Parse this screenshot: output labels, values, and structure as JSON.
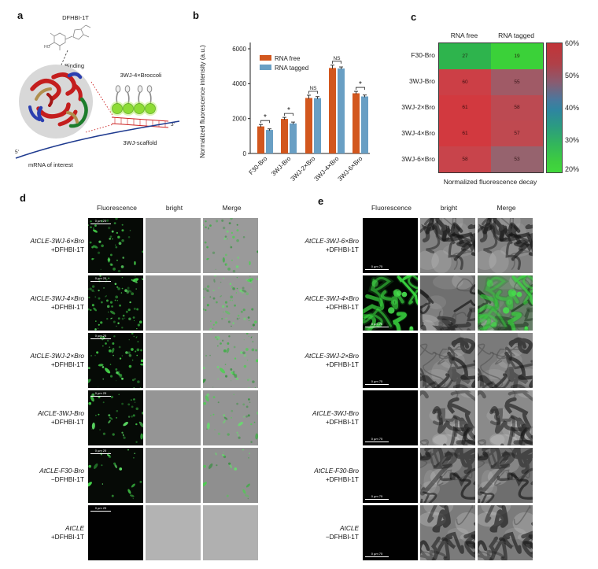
{
  "panels": {
    "a": {
      "label": "a",
      "dye": "DFHBI-1T",
      "ho_label": "HO",
      "binding": "Binding",
      "broccoli": "3WJ-4×Broccoli",
      "scaffold": "3WJ-scaffold",
      "mrna": "mRNA of interest",
      "five_prime": "5'",
      "three_prime": "3'"
    },
    "b": {
      "label": "b",
      "chart_data": {
        "type": "bar",
        "categories": [
          "F30-Bro",
          "3WJ-Bro",
          "3WJ-2×Bro",
          "3WJ-4×Bro",
          "3WJ-6×Bro"
        ],
        "series": [
          {
            "name": "RNA free",
            "color": "#d2571e",
            "values": [
              1550,
              1980,
              3180,
              4900,
              3450
            ],
            "errors": [
              110,
              90,
              160,
              160,
              110
            ]
          },
          {
            "name": "RNA tagged",
            "color": "#699fc4",
            "values": [
              1350,
              1720,
              3170,
              4870,
              3270
            ],
            "errors": [
              60,
              80,
              90,
              90,
              80
            ]
          }
        ],
        "significance": [
          "*",
          "*",
          "NS",
          "NS",
          "*"
        ],
        "ylabel": "Normalized fluorescence intensity (a.u.)",
        "ylim": [
          0,
          6000
        ],
        "yticks": [
          0,
          2000,
          4000,
          6000
        ],
        "grid": false,
        "legend_position": "top-left"
      }
    },
    "c": {
      "label": "c",
      "caption": "Normalized fluorescence decay",
      "chart_data": {
        "type": "heatmap",
        "col_headers": [
          "RNA free",
          "RNA tagged"
        ],
        "rows": [
          {
            "label": "F30-Bro",
            "values": [
              27,
              19
            ],
            "colors": [
              "#2eb44d",
              "#3bd139"
            ]
          },
          {
            "label": "3WJ-Bro",
            "values": [
              60,
              55
            ],
            "colors": [
              "#cc3f46",
              "#a05a66"
            ]
          },
          {
            "label": "3WJ-2×Bro",
            "values": [
              61,
              58
            ],
            "colors": [
              "#d2393f",
              "#bc4a52"
            ]
          },
          {
            "label": "3WJ-4×Bro",
            "values": [
              61,
              57
            ],
            "colors": [
              "#d2393f",
              "#bf4950"
            ]
          },
          {
            "label": "3WJ-6×Bro",
            "values": [
              58,
              53
            ],
            "colors": [
              "#c8444b",
              "#96636e"
            ]
          }
        ],
        "colorbar_ticks": [
          "60%",
          "50%",
          "40%",
          "30%",
          "20%"
        ]
      }
    },
    "d": {
      "label": "d",
      "col_headers": [
        "Fluorescence",
        "bright",
        "Merge"
      ],
      "scale_label": "0 µm 25",
      "rows": [
        {
          "line1": "AtCLE-3WJ-6×Bro",
          "line2": "+DFHBI-1T",
          "fluo": {
            "type": "specks",
            "n": 46,
            "seed": 11
          },
          "bright": {
            "type": "noise",
            "shade": "#9b9b9b"
          },
          "merge": {
            "type": "noise-specks",
            "seed": 11,
            "n": 40,
            "shade": "#9a9a9a"
          }
        },
        {
          "line1": "AtCLE-3WJ-4×Bro",
          "line2": "+DFHBI-1T",
          "fluo": {
            "type": "specks",
            "n": 78,
            "seed": 22
          },
          "bright": {
            "type": "noise",
            "shade": "#989898"
          },
          "merge": {
            "type": "noise-specks",
            "seed": 22,
            "n": 70,
            "shade": "#979797"
          }
        },
        {
          "line1": "AtCLE-3WJ-2×Bro",
          "line2": "+DFHBI-1T",
          "fluo": {
            "type": "specks",
            "n": 58,
            "seed": 33
          },
          "bright": {
            "type": "noise",
            "shade": "#9d9d9d"
          },
          "merge": {
            "type": "noise-specks",
            "seed": 33,
            "n": 50,
            "shade": "#9b9b9b"
          }
        },
        {
          "line1": "AtCLE-3WJ-Bro",
          "line2": "+DFHBI-1T",
          "fluo": {
            "type": "specks",
            "n": 40,
            "seed": 44
          },
          "bright": {
            "type": "noise",
            "shade": "#959595"
          },
          "merge": {
            "type": "noise-specks",
            "seed": 44,
            "n": 36,
            "shade": "#949494"
          }
        },
        {
          "line1": "AtCLE-F30-Bro",
          "line2": "−DFHBI-1T",
          "fluo": {
            "type": "specks",
            "n": 22,
            "seed": 55
          },
          "bright": {
            "type": "noise",
            "shade": "#909090"
          },
          "merge": {
            "type": "noise-specks",
            "seed": 55,
            "n": 20,
            "shade": "#8f8f8f"
          }
        },
        {
          "line1": "AtCLE",
          "line2": "+DFHBI-1T",
          "fluo": {
            "type": "black"
          },
          "bright": {
            "type": "noise",
            "shade": "#b3b3b3"
          },
          "merge": {
            "type": "noise",
            "shade": "#b0b0b0"
          }
        }
      ]
    },
    "e": {
      "label": "e",
      "col_headers": [
        "Fluorescence",
        "bright",
        "Merge"
      ],
      "scale_label": "0 µm 75",
      "rows": [
        {
          "line1": "AtCLE-3WJ-6×Bro",
          "line2": "+DFHBI-1T",
          "fluo": {
            "type": "black"
          },
          "bright": {
            "type": "cells",
            "seed": 101,
            "shade": "#828282"
          },
          "merge": {
            "type": "cells",
            "seed": 101,
            "shade": "#828282"
          }
        },
        {
          "line1": "AtCLE-3WJ-4×Bro",
          "line2": "+DFHBI-1T",
          "fluo": {
            "type": "green-cells",
            "seed": 202
          },
          "bright": {
            "type": "cells",
            "seed": 202,
            "shade": "#6f6f6f"
          },
          "merge": {
            "type": "cells-green",
            "seed": 202,
            "shade": "#6f6f6f"
          }
        },
        {
          "line1": "AtCLE-3WJ-2×Bro",
          "line2": "+DFHBI-1T",
          "fluo": {
            "type": "black"
          },
          "bright": {
            "type": "cells",
            "seed": 303,
            "shade": "#7a7a7a"
          },
          "merge": {
            "type": "cells",
            "seed": 303,
            "shade": "#7a7a7a"
          }
        },
        {
          "line1": "AtCLE-3WJ-Bro",
          "line2": "+DFHBI-1T",
          "fluo": {
            "type": "black"
          },
          "bright": {
            "type": "cells",
            "seed": 404,
            "shade": "#8a8a8a"
          },
          "merge": {
            "type": "cells",
            "seed": 404,
            "shade": "#8a8a8a"
          }
        },
        {
          "line1": "AtCLE-F30-Bro",
          "line2": "+DFHBI-1T",
          "fluo": {
            "type": "black"
          },
          "bright": {
            "type": "cells",
            "seed": 505,
            "shade": "#6e6e6e"
          },
          "merge": {
            "type": "cells",
            "seed": 505,
            "shade": "#6e6e6e"
          }
        },
        {
          "line1": "AtCLE",
          "line2": "−DFHBI-1T",
          "fluo": {
            "type": "black"
          },
          "bright": {
            "type": "cells",
            "seed": 606,
            "shade": "#7b7b7b"
          },
          "merge": {
            "type": "cells",
            "seed": 606,
            "shade": "#7b7b7b"
          }
        }
      ]
    }
  }
}
